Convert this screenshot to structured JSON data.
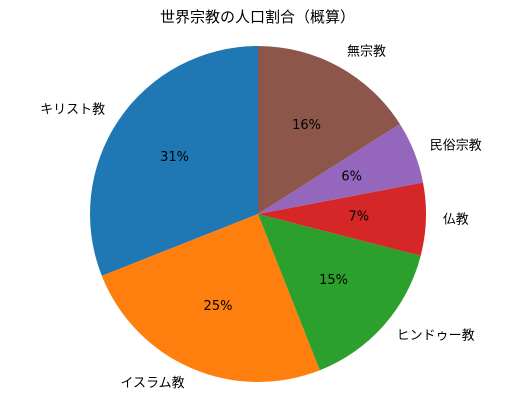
{
  "chart_data": {
    "type": "pie",
    "title": "世界宗教の人口割合（概算）",
    "start_angle_deg": 90,
    "direction": "counterclockwise",
    "legend": "none",
    "slices": [
      {
        "label": "キリスト教",
        "value": 31,
        "pct_label": "31%",
        "color": "#1f77b4"
      },
      {
        "label": "イスラム教",
        "value": 25,
        "pct_label": "25%",
        "color": "#ff7f0e"
      },
      {
        "label": "ヒンドゥー教",
        "value": 15,
        "pct_label": "15%",
        "color": "#2ca02c"
      },
      {
        "label": "仏教",
        "value": 7,
        "pct_label": "7%",
        "color": "#d62728"
      },
      {
        "label": "民俗宗教",
        "value": 6,
        "pct_label": "6%",
        "color": "#9467bd"
      },
      {
        "label": "無宗教",
        "value": 16,
        "pct_label": "16%",
        "color": "#8c564b"
      }
    ]
  }
}
